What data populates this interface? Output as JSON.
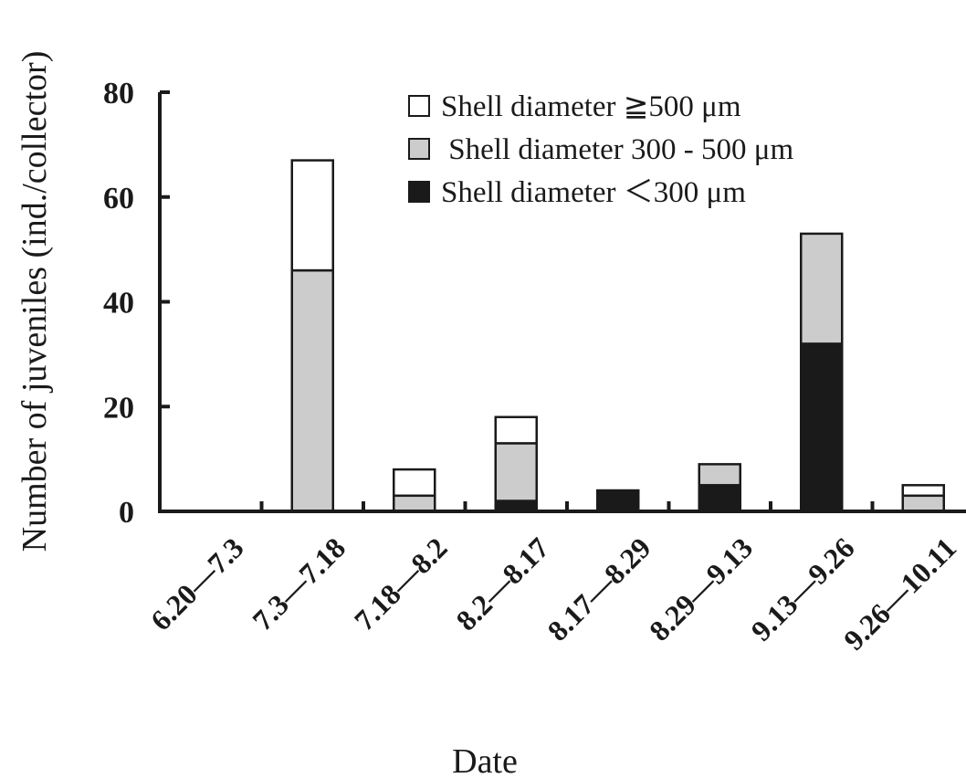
{
  "chart_data": {
    "type": "bar",
    "stacked": true,
    "categories": [
      "6.20—7.3",
      "7.3—7.18",
      "7.18—8.2",
      "8.2—8.17",
      "8.17—8.29",
      "8.29—9.13",
      "9.13—9.26",
      "9.26—10.11"
    ],
    "series": [
      {
        "name": "Shell diameter ＜300 μm",
        "color": "#1a1a1a",
        "values": [
          0,
          0,
          0,
          2,
          4,
          5,
          32,
          0
        ]
      },
      {
        "name": " Shell diameter 300 - 500 μm",
        "color": "#cccccc",
        "values": [
          0,
          46,
          3,
          11,
          0,
          4,
          21,
          3
        ]
      },
      {
        "name": "Shell diameter ≧500 μm",
        "color": "#ffffff",
        "values": [
          0,
          21,
          5,
          5,
          0,
          0,
          0,
          2
        ]
      }
    ],
    "legend_order": [
      2,
      1,
      0
    ],
    "legend_position": "top-right",
    "xlabel": "Date",
    "ylabel": "Number of juveniles (ind./collector)",
    "ylim": [
      0,
      80
    ],
    "yticks": [
      0,
      20,
      40,
      60,
      80
    ],
    "grid": false
  }
}
